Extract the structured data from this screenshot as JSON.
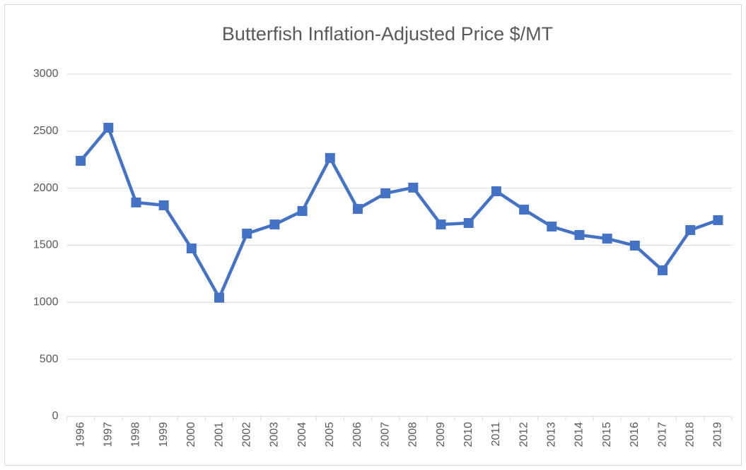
{
  "chart_data": {
    "type": "line",
    "title": "Butterfish Inflation-Adjusted Price $/MT",
    "categories": [
      "1996",
      "1997",
      "1998",
      "1999",
      "2000",
      "2001",
      "2002",
      "2003",
      "2004",
      "2005",
      "2006",
      "2007",
      "2008",
      "2009",
      "2010",
      "2011",
      "2012",
      "2013",
      "2014",
      "2015",
      "2016",
      "2017",
      "2018",
      "2019"
    ],
    "values": [
      2240,
      2530,
      1875,
      1850,
      1472,
      1040,
      1602,
      1682,
      1800,
      2265,
      1818,
      1955,
      2005,
      1682,
      1695,
      1973,
      1812,
      1664,
      1590,
      1558,
      1497,
      1280,
      1633,
      1720
    ],
    "color": "#4472c4",
    "marker": "square",
    "ylim": [
      0,
      3000
    ],
    "yticks": [
      0,
      500,
      1000,
      1500,
      2000,
      2500,
      3000
    ],
    "grid": true
  }
}
